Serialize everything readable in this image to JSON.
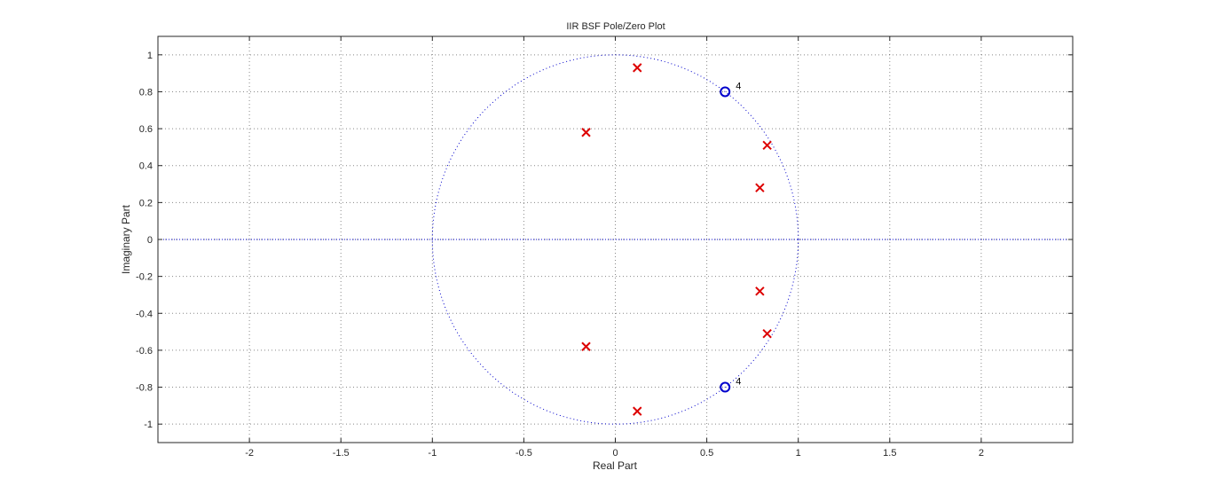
{
  "chart_data": {
    "type": "scatter",
    "title": "IIR BSF Pole/Zero Plot",
    "xlabel": "Real Part",
    "ylabel": "Imaginary Part",
    "xlim": [
      -2.5,
      2.5
    ],
    "ylim": [
      -1.1,
      1.1
    ],
    "xticks": [
      -2,
      -1.5,
      -1,
      -0.5,
      0,
      0.5,
      1,
      1.5,
      2
    ],
    "xtick_labels": [
      "-2",
      "-1.5",
      "-1",
      "-0.5",
      "0",
      "0.5",
      "1",
      "1.5",
      "2"
    ],
    "yticks": [
      1,
      0.8,
      0.6,
      0.4,
      0.2,
      0,
      -0.2,
      -0.4,
      -0.6,
      -0.8,
      -1
    ],
    "ytick_labels": [
      "1",
      "0.8",
      "0.6",
      "0.4",
      "0.2",
      "0",
      "-0.2",
      "-0.4",
      "-0.6",
      "-0.8",
      "-1"
    ],
    "grid": true,
    "unit_circle": true,
    "series": [
      {
        "marker": "x",
        "color": "#dd0000",
        "points": [
          {
            "x": 0.12,
            "y": 0.93
          },
          {
            "x": -0.16,
            "y": 0.58
          },
          {
            "x": 0.83,
            "y": 0.51
          },
          {
            "x": 0.79,
            "y": 0.28
          },
          {
            "x": 0.79,
            "y": -0.28
          },
          {
            "x": 0.83,
            "y": -0.51
          },
          {
            "x": -0.16,
            "y": -0.58
          },
          {
            "x": 0.12,
            "y": -0.93
          }
        ]
      },
      {
        "marker": "o",
        "color": "#0000cc",
        "points": [
          {
            "x": 0.6,
            "y": 0.8,
            "multiplicity": "4"
          },
          {
            "x": 0.6,
            "y": -0.8,
            "multiplicity": "4"
          }
        ]
      }
    ],
    "colors": {
      "axis": "#262626",
      "grid": "#262626",
      "unit_circle": "#0000cc",
      "real_axis_line": "#0000cc"
    }
  }
}
